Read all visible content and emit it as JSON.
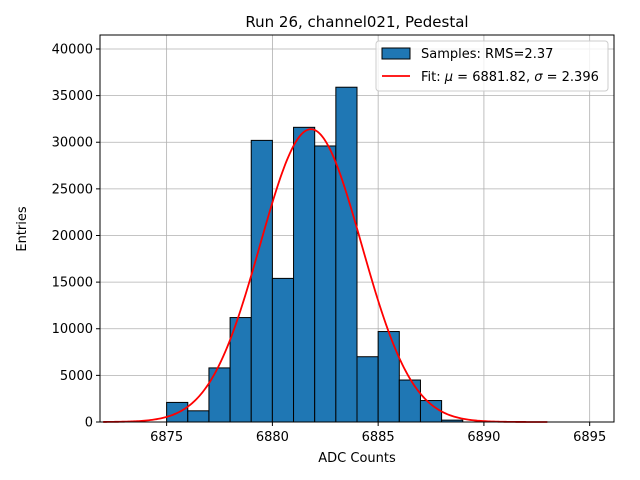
{
  "chart_data": {
    "type": "bar",
    "title": "Run 26, channel021, Pedestal",
    "xlabel": "ADC Counts",
    "ylabel": "Entries",
    "xlim": [
      6871.85,
      6896.15
    ],
    "ylim": [
      0,
      41500
    ],
    "xticks": [
      6875,
      6880,
      6885,
      6890,
      6895
    ],
    "yticks": [
      0,
      5000,
      10000,
      15000,
      20000,
      25000,
      30000,
      35000,
      40000
    ],
    "grid": true,
    "legend_position": "top-right",
    "histogram": {
      "name": "Samples: RMS=2.37",
      "color": "#1f77b4",
      "edge_color": "#000000",
      "bins": [
        {
          "start": 6872,
          "end": 6873,
          "value": 0
        },
        {
          "start": 6873,
          "end": 6874,
          "value": 0
        },
        {
          "start": 6874,
          "end": 6875,
          "value": 0
        },
        {
          "start": 6875,
          "end": 6876,
          "value": 2100
        },
        {
          "start": 6876,
          "end": 6877,
          "value": 1200
        },
        {
          "start": 6877,
          "end": 6878,
          "value": 5800
        },
        {
          "start": 6878,
          "end": 6879,
          "value": 11200
        },
        {
          "start": 6879,
          "end": 6880,
          "value": 30200
        },
        {
          "start": 6880,
          "end": 6881,
          "value": 15400
        },
        {
          "start": 6881,
          "end": 6882,
          "value": 31600
        },
        {
          "start": 6882,
          "end": 6883,
          "value": 29600
        },
        {
          "start": 6883,
          "end": 6884,
          "value": 35900
        },
        {
          "start": 6884,
          "end": 6885,
          "value": 7000
        },
        {
          "start": 6885,
          "end": 6886,
          "value": 9700
        },
        {
          "start": 6886,
          "end": 6887,
          "value": 4500
        },
        {
          "start": 6887,
          "end": 6888,
          "value": 2300
        },
        {
          "start": 6888,
          "end": 6889,
          "value": 200
        },
        {
          "start": 6889,
          "end": 6890,
          "value": 0
        },
        {
          "start": 6890,
          "end": 6891,
          "value": 0
        },
        {
          "start": 6891,
          "end": 6892,
          "value": 0
        },
        {
          "start": 6892,
          "end": 6893,
          "value": 0
        }
      ]
    },
    "fit": {
      "name": "Fit: μ = 6881.82, σ = 2.396",
      "label_prefix": "Fit: ",
      "mu_symbol": "μ",
      "mu_part": " = 6881.82, ",
      "sigma_symbol": "σ",
      "sigma_part": " = 2.396",
      "color": "#ff0000",
      "type": "gaussian",
      "mu": 6881.82,
      "sigma": 2.396,
      "amplitude": 31400,
      "x_range": [
        6872,
        6893
      ]
    }
  }
}
